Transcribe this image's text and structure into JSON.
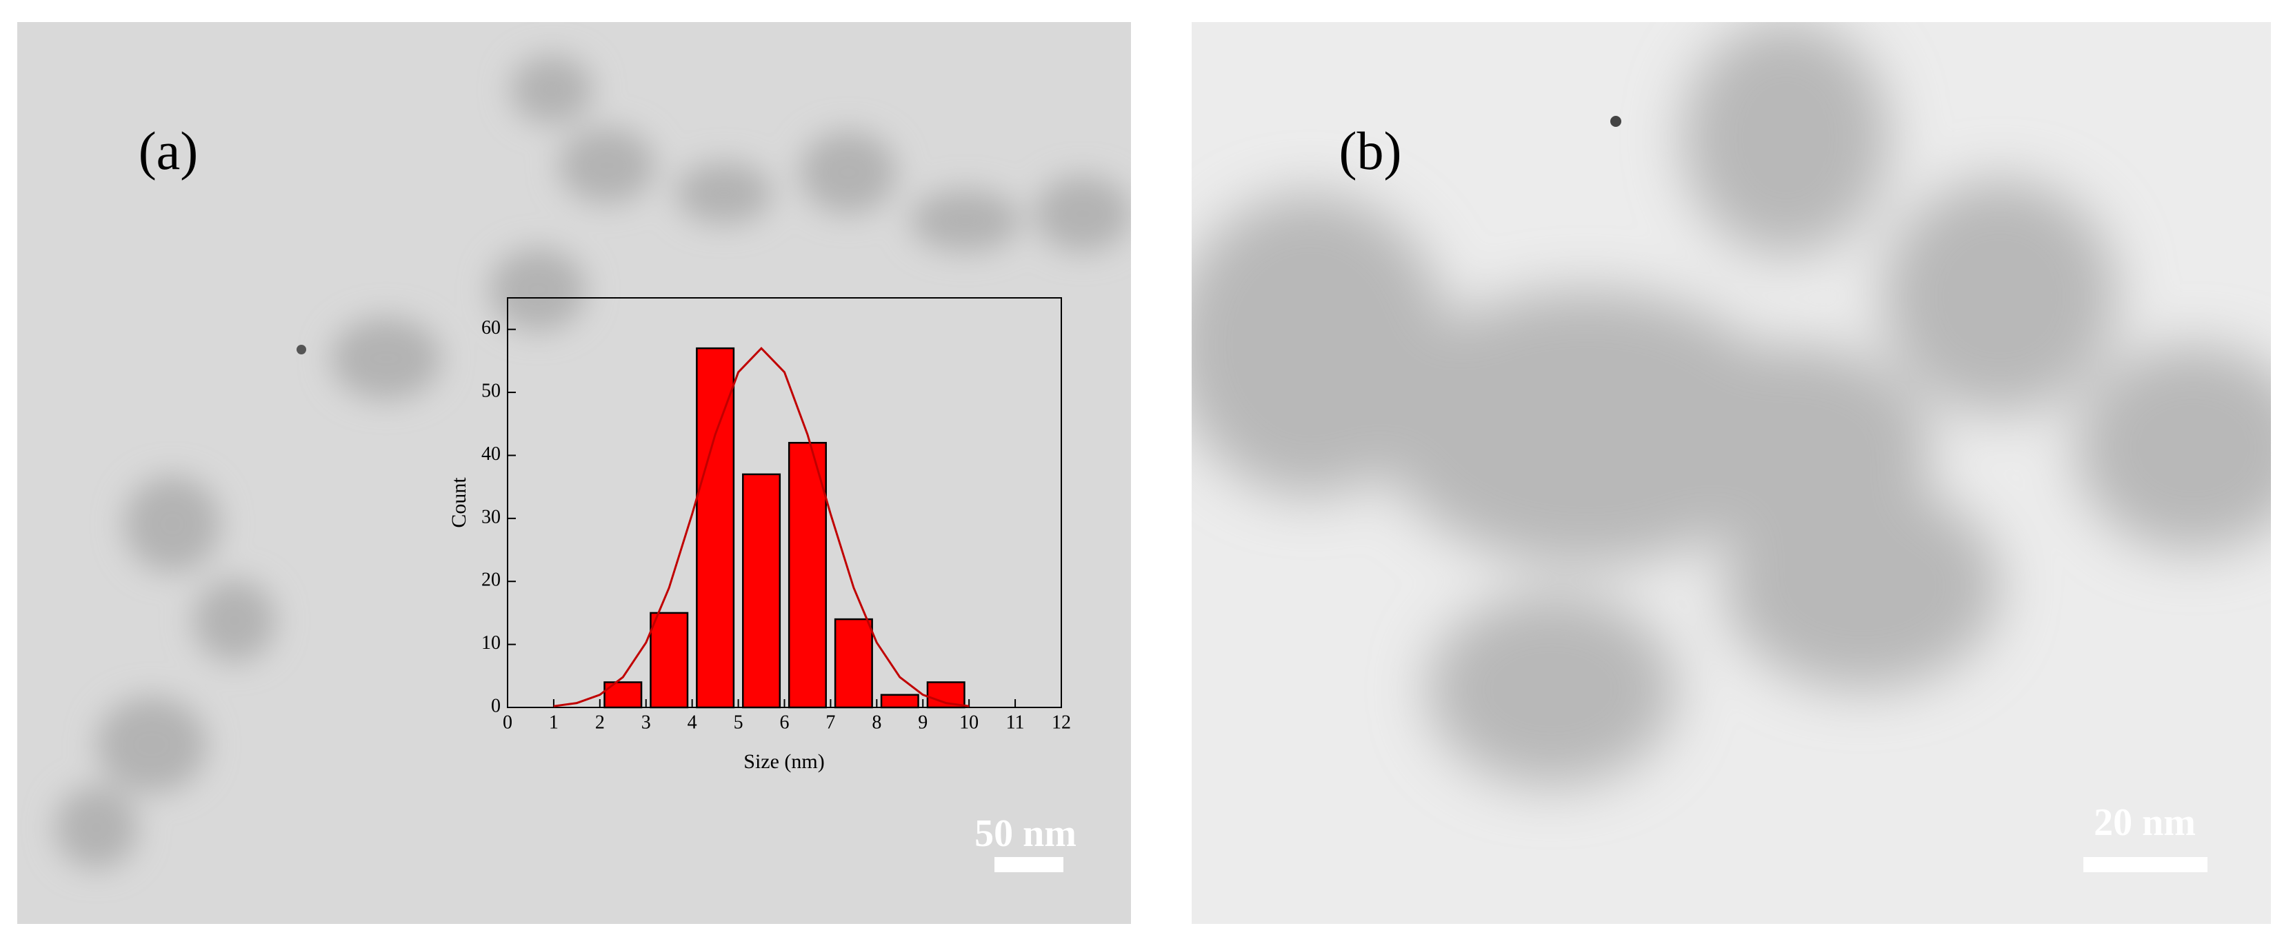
{
  "panels": [
    {
      "label": "(a)",
      "scale_bar": "50 nm"
    },
    {
      "label": "(b)",
      "scale_bar": "20 nm"
    }
  ],
  "chart_data": {
    "type": "histogram",
    "x_label": "Size (nm)",
    "y_label": "Count",
    "bins": [
      2,
      3,
      4,
      5,
      6,
      7,
      8,
      9,
      10
    ],
    "values": [
      4,
      15,
      57,
      37,
      42,
      14,
      2,
      4
    ],
    "color": "#ff0000",
    "fit_curve": {
      "color": "#c00000",
      "x": [
        1,
        1.5,
        2,
        2.5,
        3,
        3.5,
        4,
        4.5,
        5,
        5.5,
        6,
        6.5,
        7,
        7.5,
        8,
        8.5,
        9,
        9.5,
        10
      ],
      "values": [
        0.2,
        0.7,
        2.0,
        4.8,
        10.3,
        19.0,
        30.7,
        43.3,
        53.2,
        57,
        53.2,
        43.3,
        30.7,
        19.0,
        10.3,
        4.8,
        2.0,
        0.7,
        0.2
      ]
    },
    "xlim": [
      0,
      12
    ],
    "xticks": [
      0,
      1,
      2,
      3,
      4,
      5,
      6,
      7,
      8,
      9,
      10,
      11,
      12
    ],
    "ylim": [
      0,
      65
    ],
    "yticks": [
      0,
      10,
      20,
      30,
      40,
      50,
      60
    ]
  }
}
